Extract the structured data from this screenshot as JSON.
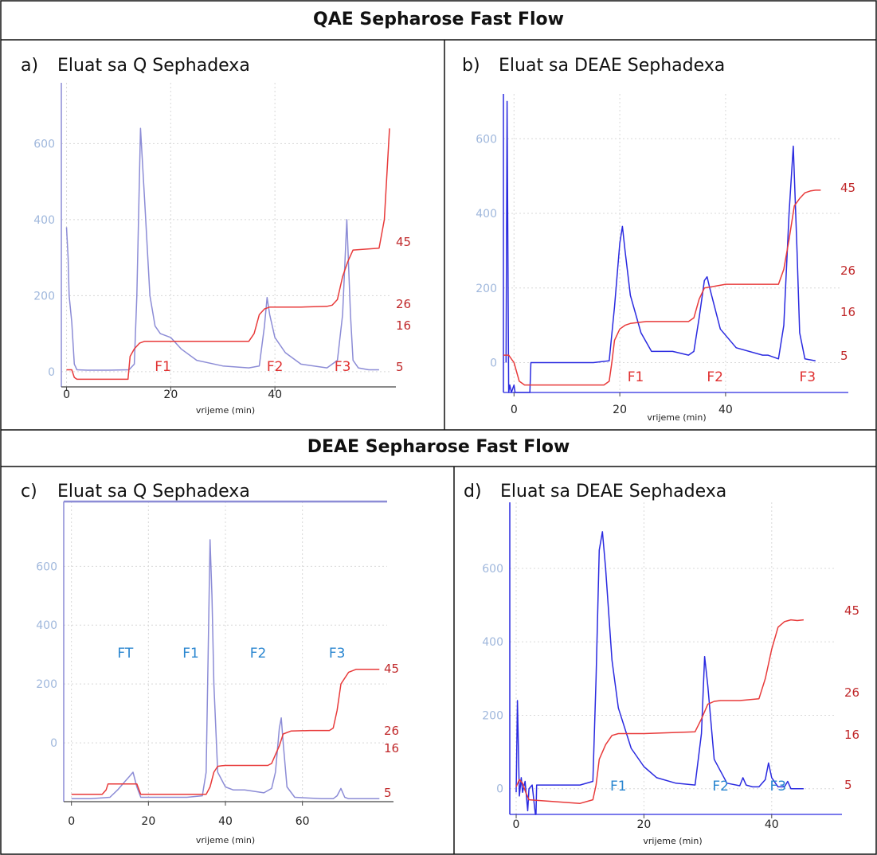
{
  "headers": {
    "top": "QAE Sepharose Fast Flow",
    "bottom": "DEAE Sepharose Fast Flow"
  },
  "panels": [
    {
      "letter": "a)",
      "title": "Eluat sa Q Sephadexa"
    },
    {
      "letter": "b)",
      "title": "Eluat sa DEAE Sephadexa"
    },
    {
      "letter": "c)",
      "title": "Eluat sa Q Sephadexa"
    },
    {
      "letter": "d)",
      "title": "Eluat sa DEAE Sephadexa"
    }
  ],
  "colors": {
    "uv_blue": "#2a2ae0",
    "uv_lavender": "#8c8cd6",
    "conductivity_red": "#e83a3a",
    "right_label_red": "#c0282a",
    "fraction_red": "#e03030",
    "fraction_blue": "#2a86d0",
    "tick_light_blue": "#9fb7dc",
    "grid": "#d8d8d8",
    "border": "#111111"
  },
  "chart_data": [
    {
      "type": "line",
      "panel": "a",
      "xlabel": "vrijeme (min)",
      "xlim": [
        -1,
        62
      ],
      "ylim": [
        -40,
        760
      ],
      "xticks": [
        0,
        20,
        40
      ],
      "yticks": [
        0,
        200,
        400,
        600
      ],
      "grid": true,
      "uv_color": "uv_lavender",
      "series": [
        {
          "role": "uv",
          "x": [
            0,
            0.3,
            0.5,
            1,
            1.5,
            2,
            4,
            8,
            12,
            13,
            13.5,
            14.2,
            15,
            16,
            17,
            18,
            20,
            22,
            25,
            30,
            35,
            37,
            38,
            38.5,
            39,
            40,
            42,
            45,
            50,
            52,
            53,
            53.8,
            54.5,
            55,
            56,
            58,
            60
          ],
          "y": [
            380,
            300,
            200,
            130,
            20,
            5,
            4,
            4,
            5,
            20,
            200,
            640,
            450,
            200,
            120,
            100,
            90,
            60,
            30,
            15,
            10,
            15,
            120,
            195,
            150,
            90,
            50,
            20,
            10,
            30,
            150,
            400,
            150,
            30,
            10,
            5,
            5
          ]
        },
        {
          "role": "conductivity",
          "x": [
            0,
            1,
            1.5,
            2,
            11.8,
            12.2,
            13,
            14,
            15,
            16,
            25,
            35,
            36,
            37,
            38,
            39,
            45,
            50,
            51,
            52,
            53,
            54,
            55,
            60,
            61,
            62
          ],
          "y": [
            5,
            5,
            -15,
            -20,
            -20,
            40,
            60,
            75,
            80,
            80,
            80,
            80,
            100,
            150,
            165,
            170,
            170,
            172,
            175,
            190,
            250,
            290,
            320,
            325,
            400,
            640
          ]
        }
      ],
      "right_labels": [
        "45",
        "26",
        "16",
        "5"
      ],
      "fraction_labels": [
        {
          "text": "F1",
          "x": 18.5
        },
        {
          "text": "F2",
          "x": 40
        },
        {
          "text": "F3",
          "x": 53
        }
      ],
      "fraction_color": "fraction_red"
    },
    {
      "type": "line",
      "panel": "b",
      "xlabel": "vrijeme (min)",
      "xlim": [
        -2,
        62
      ],
      "ylim": [
        -80,
        720
      ],
      "xticks": [
        0,
        20,
        40
      ],
      "yticks": [
        0,
        200,
        400,
        600
      ],
      "grid": true,
      "uv_color": "uv_blue",
      "series": [
        {
          "role": "uv",
          "x": [
            -1.5,
            -1.3,
            -1,
            -0.8,
            -0.5,
            0,
            0.2,
            1,
            3,
            3.2,
            4,
            15,
            18,
            19,
            20,
            20.5,
            21,
            22,
            24,
            26,
            30,
            33,
            34,
            35,
            36,
            36.5,
            37,
            39,
            42,
            47,
            48,
            50,
            51,
            52,
            52.8,
            53.5,
            54,
            55,
            57
          ],
          "y": [
            0,
            700,
            -80,
            -60,
            -80,
            -60,
            -80,
            -80,
            -80,
            0,
            0,
            0,
            5,
            150,
            320,
            365,
            300,
            180,
            80,
            30,
            30,
            20,
            30,
            120,
            220,
            230,
            200,
            90,
            40,
            20,
            20,
            10,
            100,
            400,
            580,
            300,
            80,
            10,
            5
          ]
        },
        {
          "role": "conductivity",
          "x": [
            -2,
            -1,
            0,
            1,
            2,
            17,
            18,
            18.5,
            19,
            20,
            21,
            22,
            25,
            33,
            34,
            35,
            36,
            40,
            50,
            51,
            52,
            53,
            54,
            55,
            56,
            57,
            58
          ],
          "y": [
            20,
            20,
            0,
            -50,
            -60,
            -60,
            -50,
            0,
            60,
            90,
            100,
            105,
            110,
            110,
            120,
            170,
            200,
            210,
            210,
            250,
            330,
            420,
            440,
            455,
            460,
            462,
            462
          ]
        }
      ],
      "right_labels": [
        "45",
        "26",
        "16",
        "5"
      ],
      "fraction_labels": [
        {
          "text": "F1",
          "x": 23
        },
        {
          "text": "F2",
          "x": 38
        },
        {
          "text": "F3",
          "x": 55.5
        }
      ],
      "fraction_color": "fraction_red"
    },
    {
      "type": "line",
      "panel": "c",
      "xlabel": "vrijeme (min)",
      "xlim": [
        -2,
        82
      ],
      "ylim": [
        -200,
        820
      ],
      "xticks": [
        0,
        20,
        40,
        60
      ],
      "yticks": [
        0,
        200,
        400,
        600
      ],
      "grid": true,
      "uv_color": "uv_lavender",
      "series": [
        {
          "role": "uv",
          "x": [
            0,
            5,
            10,
            12,
            14,
            15,
            16,
            17,
            18,
            25,
            30,
            34,
            35,
            35.5,
            36,
            36.5,
            37,
            38,
            40,
            42,
            45,
            50,
            52,
            53,
            54,
            54.5,
            55,
            56,
            58,
            65,
            68,
            69,
            70,
            71,
            72,
            75,
            80
          ],
          "y": [
            -190,
            -190,
            -185,
            -160,
            -130,
            -115,
            -100,
            -150,
            -185,
            -185,
            -185,
            -180,
            -100,
            300,
            690,
            500,
            200,
            -100,
            -150,
            -160,
            -160,
            -170,
            -155,
            -100,
            50,
            85,
            0,
            -150,
            -185,
            -190,
            -190,
            -180,
            -155,
            -185,
            -190,
            -190,
            -190
          ]
        },
        {
          "role": "conductivity",
          "x": [
            0,
            8,
            9,
            9.5,
            10,
            17,
            18,
            35,
            36,
            37,
            38,
            39,
            40,
            50,
            51,
            52,
            53,
            54,
            55,
            57,
            62,
            67,
            68,
            69,
            70,
            72,
            74,
            80
          ],
          "y": [
            -175,
            -175,
            -160,
            -140,
            -140,
            -140,
            -175,
            -175,
            -150,
            -100,
            -80,
            -78,
            -77,
            -77,
            -77,
            -70,
            -40,
            -10,
            30,
            40,
            42,
            42,
            50,
            110,
            200,
            240,
            250,
            250
          ]
        }
      ],
      "right_labels": [
        "45",
        "26",
        "16",
        "5"
      ],
      "fraction_labels": [
        {
          "text": "FT",
          "x": 14
        },
        {
          "text": "F1",
          "x": 31
        },
        {
          "text": "F2",
          "x": 48.5
        },
        {
          "text": "F3",
          "x": 69
        }
      ],
      "fraction_color": "fraction_blue"
    },
    {
      "type": "line",
      "panel": "d",
      "xlabel": "vrijeme (min)",
      "xlim": [
        -1,
        50
      ],
      "ylim": [
        -70,
        780
      ],
      "xticks": [
        0,
        20,
        40
      ],
      "yticks": [
        0,
        200,
        400,
        600
      ],
      "grid": true,
      "uv_color": "uv_blue",
      "series": [
        {
          "role": "uv",
          "x": [
            0,
            0.2,
            0.5,
            0.8,
            1,
            1.4,
            1.8,
            2,
            2.5,
            3,
            3.1,
            3.2,
            4,
            10,
            12,
            12.5,
            13,
            13.5,
            14,
            15,
            16,
            18,
            20,
            22,
            25,
            28,
            29,
            29.5,
            30,
            31,
            33,
            35,
            35.5,
            36,
            37,
            38,
            39,
            39.5,
            40,
            41,
            42,
            42.5,
            43,
            45
          ],
          "y": [
            -10,
            240,
            -20,
            30,
            -10,
            20,
            -60,
            0,
            10,
            -70,
            -70,
            10,
            10,
            10,
            20,
            300,
            650,
            700,
            600,
            350,
            220,
            110,
            60,
            30,
            15,
            10,
            150,
            360,
            280,
            80,
            15,
            8,
            30,
            10,
            5,
            5,
            25,
            70,
            30,
            5,
            5,
            20,
            0,
            0
          ]
        },
        {
          "role": "conductivity",
          "x": [
            0,
            0.5,
            1,
            1.5,
            2,
            10,
            12,
            12.5,
            13,
            14,
            15,
            16,
            17,
            20,
            28,
            29,
            30,
            31,
            32,
            35,
            38,
            39,
            40,
            41,
            42,
            43,
            44,
            45
          ],
          "y": [
            5,
            25,
            15,
            -10,
            -30,
            -40,
            -30,
            10,
            80,
            120,
            145,
            150,
            150,
            150,
            155,
            190,
            230,
            238,
            240,
            240,
            245,
            300,
            380,
            440,
            455,
            460,
            458,
            460
          ]
        }
      ],
      "right_labels": [
        "45",
        "26",
        "16",
        "5"
      ],
      "fraction_labels": [
        {
          "text": "F1",
          "x": 16
        },
        {
          "text": "F2",
          "x": 32
        },
        {
          "text": "F3",
          "x": 41
        }
      ],
      "fraction_color": "fraction_blue"
    }
  ]
}
